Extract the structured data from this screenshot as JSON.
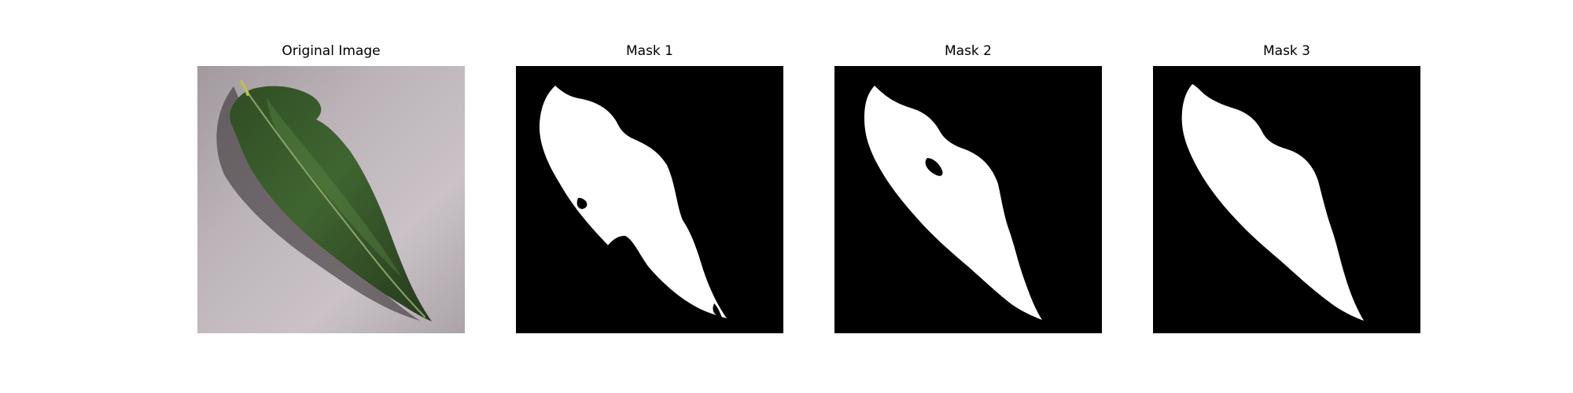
{
  "figure": {
    "panels": [
      {
        "title": "Original Image",
        "kind": "photo",
        "subject": "leaf-photo"
      },
      {
        "title": "Mask 1",
        "kind": "mask",
        "subject": "leaf-mask"
      },
      {
        "title": "Mask 2",
        "kind": "mask",
        "subject": "leaf-mask"
      },
      {
        "title": "Mask 3",
        "kind": "mask",
        "subject": "leaf-mask"
      }
    ],
    "colors": {
      "background": "#ffffff",
      "mask_background": "#000000",
      "mask_foreground": "#ffffff",
      "leaf_dark": "#2d4a24",
      "leaf_light": "#4f7a3d",
      "surface": "#b7aeb3"
    }
  }
}
